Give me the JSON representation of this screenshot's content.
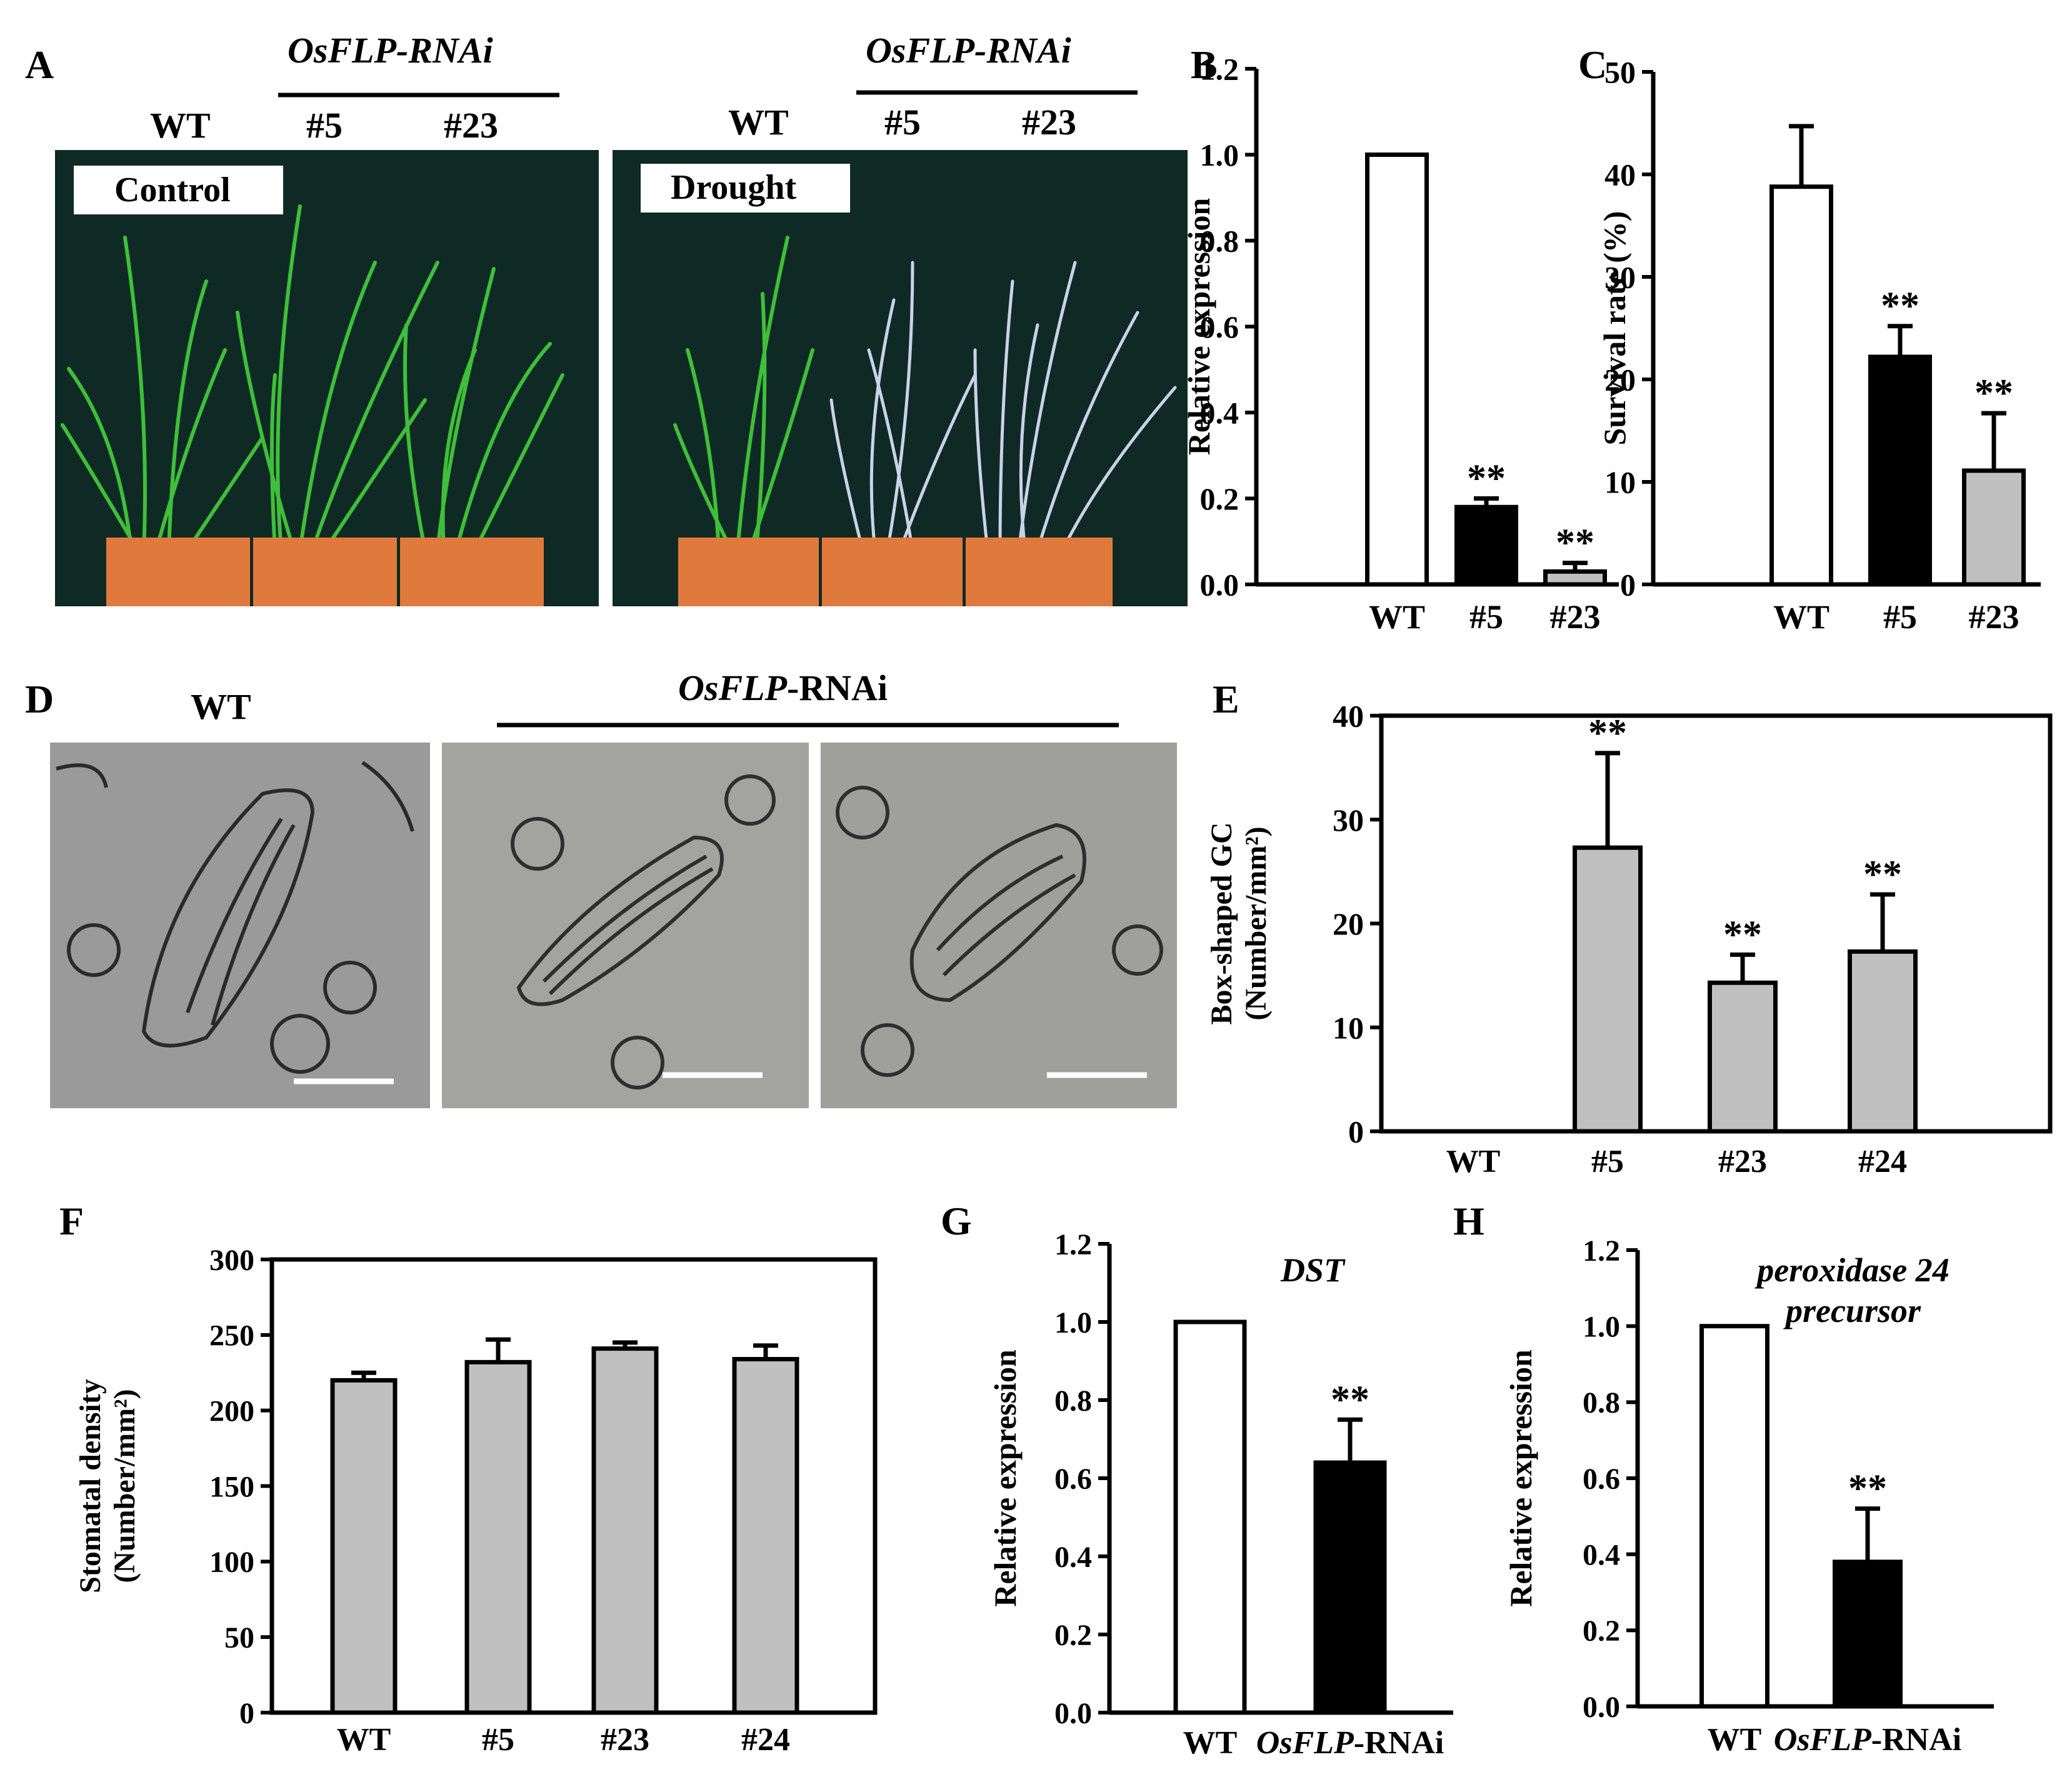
{
  "colors": {
    "photo_bg": "#0f2a24",
    "pot": "#e07a3c",
    "leaf_green": "#3fbf3a",
    "leaf_white": "#c9d3e8",
    "micro_bg": "#9a9a9a",
    "bar_white": "#ffffff",
    "bar_black": "#000000",
    "bar_gray": "#c0c0c0"
  },
  "panelA": {
    "letter": "A",
    "group_label": "OsFLP-RNAi",
    "lines": [
      "WT",
      "#5",
      "#23"
    ],
    "control_label": "Control",
    "drought_label": "Drought"
  },
  "panelD": {
    "letter": "D",
    "wt_label": "WT",
    "rnai_italic": "OsFLP",
    "rnai_suffix": "-RNAi"
  },
  "chart_data": [
    {
      "panel": "B",
      "type": "bar",
      "ylabel": "Relative expression",
      "ylim": [
        0,
        1.2
      ],
      "yticks": [
        "0.0",
        "0.2",
        "0.4",
        "0.6",
        "0.8",
        "1.0",
        "1.2"
      ],
      "categories": [
        "WT",
        "#5",
        "#23"
      ],
      "values": [
        1.0,
        0.18,
        0.03
      ],
      "errors": [
        0,
        0.02,
        0.02
      ],
      "fills": [
        "#ffffff",
        "#000000",
        "#c0c0c0"
      ],
      "significance": [
        "",
        "**",
        "**"
      ]
    },
    {
      "panel": "C",
      "type": "bar",
      "ylabel": "Survival rate (%)",
      "ylim": [
        0,
        50
      ],
      "yticks": [
        "0",
        "10",
        "20",
        "30",
        "40",
        "50"
      ],
      "categories": [
        "WT",
        "#5",
        "#23"
      ],
      "values": [
        38.8,
        22.2,
        11.1
      ],
      "errors": [
        5.9,
        3.0,
        5.6
      ],
      "fills": [
        "#ffffff",
        "#000000",
        "#c0c0c0"
      ],
      "significance": [
        "",
        "**",
        "**"
      ]
    },
    {
      "panel": "E",
      "type": "bar",
      "ylabel_line1": "Box-shaped GC",
      "ylabel_line2": "(Number/mm²)",
      "ylim": [
        0,
        40
      ],
      "yticks": [
        "0",
        "10",
        "20",
        "30",
        "40"
      ],
      "categories": [
        "WT",
        "#5",
        "#23",
        "#24"
      ],
      "values": [
        0,
        27.3,
        14.3,
        17.3
      ],
      "errors": [
        0,
        9.1,
        2.7,
        5.5
      ],
      "fills": [
        "#c0c0c0",
        "#c0c0c0",
        "#c0c0c0",
        "#c0c0c0"
      ],
      "significance": [
        "",
        "**",
        "**",
        "**"
      ]
    },
    {
      "panel": "F",
      "type": "bar",
      "ylabel_line1": "Stomatal density",
      "ylabel_line2": "(Number/mm²)",
      "ylim": [
        0,
        300
      ],
      "yticks": [
        "0",
        "50",
        "100",
        "150",
        "200",
        "250",
        "300"
      ],
      "categories": [
        "WT",
        "#5",
        "#23",
        "#24"
      ],
      "values": [
        220,
        232,
        241,
        234
      ],
      "errors": [
        5,
        15,
        4,
        9
      ],
      "fills": [
        "#c0c0c0",
        "#c0c0c0",
        "#c0c0c0",
        "#c0c0c0"
      ],
      "significance": [
        "",
        "",
        "",
        ""
      ]
    },
    {
      "panel": "G",
      "type": "bar",
      "ylabel": "Relative expression",
      "gene": "DST",
      "ylim": [
        0,
        1.2
      ],
      "yticks": [
        "0.0",
        "0.2",
        "0.4",
        "0.6",
        "0.8",
        "1.0",
        "1.2"
      ],
      "categories": [
        "WT",
        "OsFLP-RNAi"
      ],
      "values": [
        1.0,
        0.64
      ],
      "errors": [
        0,
        0.11
      ],
      "fills": [
        "#ffffff",
        "#000000"
      ],
      "significance": [
        "",
        "**"
      ]
    },
    {
      "panel": "H",
      "type": "bar",
      "ylabel": "Relative expression",
      "gene_line1": "peroxidase 24",
      "gene_line2": "precursor",
      "ylim": [
        0,
        1.2
      ],
      "yticks": [
        "0.0",
        "0.2",
        "0.4",
        "0.6",
        "0.8",
        "1.0",
        "1.2"
      ],
      "categories": [
        "WT",
        "OsFLP-RNAi"
      ],
      "values": [
        1.0,
        0.38
      ],
      "errors": [
        0,
        0.14
      ],
      "fills": [
        "#ffffff",
        "#000000"
      ],
      "significance": [
        "",
        "**"
      ]
    }
  ]
}
